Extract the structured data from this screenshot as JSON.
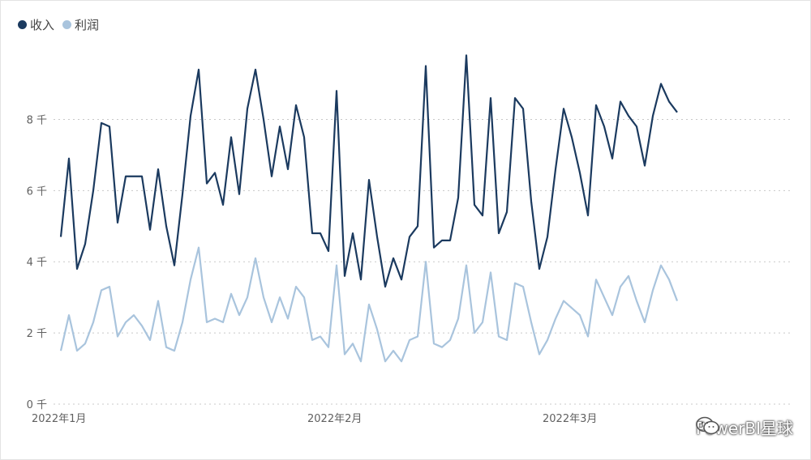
{
  "legend": {
    "series_0": "收入",
    "series_1": "利润"
  },
  "watermark": {
    "text": "PowerBI星球",
    "icon": "wechat-icon"
  },
  "colors": {
    "series_0": "#1b3a5f",
    "series_1": "#a9c4dd",
    "grid": "#c8c8c8",
    "axis_text": "#606060"
  },
  "chart_data": {
    "type": "line",
    "x_range": [
      0,
      90
    ],
    "x_tick_values": [
      0,
      34,
      63
    ],
    "x_tick_labels": [
      "2022年1月",
      "2022年2月",
      "2022年3月"
    ],
    "y_ticks": [
      0,
      2,
      4,
      6,
      8
    ],
    "y_tick_labels": [
      "0 千",
      "2 千",
      "4 千",
      "6 千",
      "8 千"
    ],
    "ylim": [
      0,
      10.9
    ],
    "grid": true,
    "legend_position": "top-left",
    "series": [
      {
        "name": "收入",
        "values": [
          4.7,
          6.9,
          3.8,
          4.5,
          6.0,
          7.9,
          7.8,
          5.1,
          6.4,
          6.4,
          6.4,
          4.9,
          6.6,
          5.0,
          3.9,
          5.9,
          8.1,
          9.4,
          6.2,
          6.5,
          5.6,
          7.5,
          5.9,
          8.3,
          9.4,
          8.0,
          6.4,
          7.8,
          6.6,
          8.4,
          7.5,
          4.8,
          4.8,
          4.3,
          8.8,
          3.6,
          4.8,
          3.5,
          6.3,
          4.7,
          3.3,
          4.1,
          3.5,
          4.7,
          5.0,
          9.5,
          4.4,
          4.6,
          4.6,
          5.8,
          9.8,
          5.6,
          5.3,
          8.6,
          4.8,
          5.4,
          8.6,
          8.3,
          5.7,
          3.8,
          4.7,
          6.6,
          8.3,
          7.5,
          6.5,
          5.3,
          8.4,
          7.8,
          6.9,
          8.5,
          8.1,
          7.8,
          6.7,
          8.1,
          9.0,
          8.5,
          8.2
        ]
      },
      {
        "name": "利润",
        "values": [
          1.5,
          2.5,
          1.5,
          1.7,
          2.3,
          3.2,
          3.3,
          1.9,
          2.3,
          2.5,
          2.2,
          1.8,
          2.9,
          1.6,
          1.5,
          2.3,
          3.5,
          4.4,
          2.3,
          2.4,
          2.3,
          3.1,
          2.5,
          3.0,
          4.1,
          3.0,
          2.3,
          3.0,
          2.4,
          3.3,
          3.0,
          1.8,
          1.9,
          1.6,
          3.9,
          1.4,
          1.7,
          1.2,
          2.8,
          2.1,
          1.2,
          1.5,
          1.2,
          1.8,
          1.9,
          4.0,
          1.7,
          1.6,
          1.8,
          2.4,
          3.9,
          2.0,
          2.3,
          3.7,
          1.9,
          1.8,
          3.4,
          3.3,
          2.3,
          1.4,
          1.8,
          2.4,
          2.9,
          2.7,
          2.5,
          1.9,
          3.5,
          3.0,
          2.5,
          3.3,
          3.6,
          2.9,
          2.3,
          3.2,
          3.9,
          3.5,
          2.9
        ]
      }
    ]
  }
}
